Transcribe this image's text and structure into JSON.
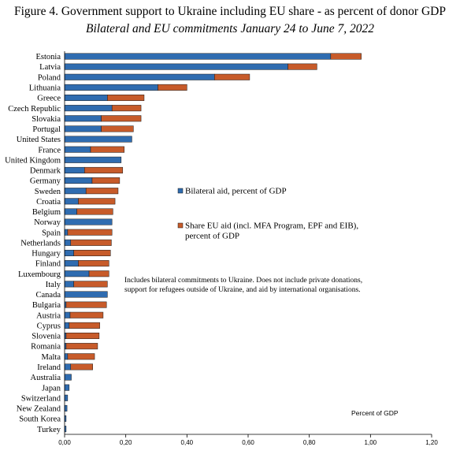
{
  "chart_data": {
    "type": "bar",
    "orientation": "horizontal",
    "stacked": true,
    "title": "Figure 4. Government support to Ukraine including EU share - as percent of donor GDP",
    "subtitle": "Bilateral and EU commitments January 24 to June 7, 2022",
    "xlabel": "Percent of GDP",
    "xlim": [
      0,
      1.2
    ],
    "xticks": [
      "0,00",
      "0,20",
      "0,40",
      "0,60",
      "0,80",
      "1,00",
      "1,20"
    ],
    "categories": [
      "Estonia",
      "Latvia",
      "Poland",
      "Lithuania",
      "Greece",
      "Czech Republic",
      "Slovakia",
      "Portugal",
      "United States",
      "France",
      "United Kingdom",
      "Denmark",
      "Germany",
      "Sweden",
      "Croatia",
      "Belgium",
      "Norway",
      "Spain",
      "Netherlands",
      "Hungary",
      "Finland",
      "Luxembourg",
      "Italy",
      "Canada",
      "Bulgaria",
      "Austria",
      "Cyprus",
      "Slovenia",
      "Romania",
      "Malta",
      "Ireland",
      "Australia",
      "Japan",
      "Switzerland",
      "New Zealand",
      "South Korea",
      "Turkey"
    ],
    "series": [
      {
        "name": "Bilateral aid, percent of GDP",
        "color": "#2f6cb0",
        "values": [
          0.87,
          0.73,
          0.49,
          0.305,
          0.14,
          0.155,
          0.12,
          0.12,
          0.22,
          0.085,
          0.185,
          0.065,
          0.09,
          0.07,
          0.045,
          0.04,
          0.155,
          0.01,
          0.02,
          0.03,
          0.045,
          0.08,
          0.03,
          0.14,
          0.005,
          0.018,
          0.015,
          0.005,
          0.005,
          0.01,
          0.02,
          0.022,
          0.015,
          0.01,
          0.008,
          0.005,
          0.005
        ]
      },
      {
        "name": "Share EU aid (incl. MFA Program, EPF and EIB), percent of GDP",
        "color": "#c75b2a",
        "values": [
          0.1,
          0.095,
          0.115,
          0.095,
          0.12,
          0.095,
          0.13,
          0.105,
          0.0,
          0.11,
          0.0,
          0.125,
          0.09,
          0.105,
          0.12,
          0.118,
          0.0,
          0.145,
          0.133,
          0.12,
          0.1,
          0.065,
          0.11,
          0.0,
          0.132,
          0.108,
          0.1,
          0.108,
          0.103,
          0.088,
          0.072,
          0.0,
          0.0,
          0.0,
          0.0,
          0.0,
          0.0
        ]
      }
    ],
    "legend": [
      {
        "label": "Bilateral aid, percent of GDP",
        "color": "#2f6cb0"
      },
      {
        "label": "Share EU aid (incl. MFA Program, EPF and EIB),",
        "label2": "percent of GDP",
        "color": "#c75b2a"
      }
    ],
    "note": [
      "Includes bilateral commitments to Ukraine. Does not include private donations,",
      "support for refugees outside of Ukraine, and aid by international organisations."
    ],
    "grid": false
  }
}
